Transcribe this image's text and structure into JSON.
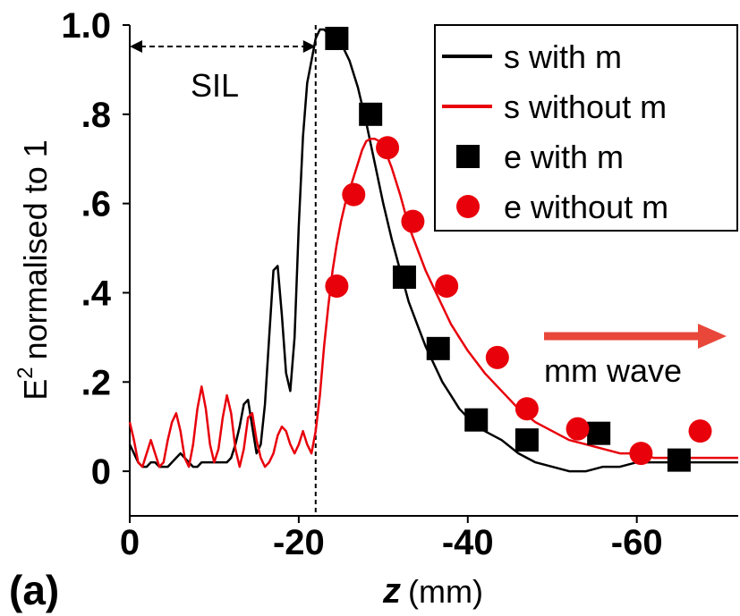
{
  "chart_data": {
    "type": "line",
    "panel_label": "(a)",
    "xlabel_var": "z",
    "xlabel_unit": "(mm)",
    "ylabel_base": "E",
    "ylabel_sup": "2",
    "ylabel_rest": "normalised to 1",
    "xlim": [
      0,
      -72
    ],
    "ylim": [
      -0.1,
      1.0
    ],
    "x_ticks": [
      {
        "value": 0,
        "label": "0"
      },
      {
        "value": -20,
        "label": "-20"
      },
      {
        "value": -40,
        "label": "-40"
      },
      {
        "value": -60,
        "label": "-60"
      }
    ],
    "y_ticks": [
      {
        "value": 0,
        "label": "0"
      },
      {
        "value": 0.2,
        "label": ".2"
      },
      {
        "value": 0.4,
        "label": ".4"
      },
      {
        "value": 0.6,
        "label": ".6"
      },
      {
        "value": 0.8,
        "label": ".8"
      },
      {
        "value": 1.0,
        "label": "1.0"
      }
    ],
    "annotations": {
      "sil_label": "SIL",
      "sil_boundary_z": -22,
      "wave_label": "mm wave",
      "wave_color": "#e8473a"
    },
    "legend_position": "top-right",
    "series": [
      {
        "name": "s with m",
        "kind": "line",
        "color": "#000000",
        "x": [
          0,
          -0.5,
          -1,
          -1.5,
          -2,
          -2.5,
          -3,
          -3.5,
          -4,
          -4.5,
          -5,
          -5.5,
          -6,
          -6.5,
          -7,
          -7.5,
          -8,
          -8.5,
          -9,
          -9.5,
          -10,
          -10.5,
          -11,
          -11.5,
          -12,
          -12.5,
          -13,
          -13.5,
          -14,
          -14.5,
          -15,
          -15.5,
          -16,
          -16.5,
          -17,
          -17.5,
          -18,
          -18.5,
          -19,
          -19.5,
          -20,
          -20.5,
          -21,
          -21.5,
          -22,
          -22.5,
          -23,
          -23.5,
          -24,
          -24.5,
          -25,
          -26,
          -27,
          -28,
          -29,
          -30,
          -31,
          -32,
          -33,
          -34,
          -35,
          -36,
          -37,
          -38,
          -39,
          -40,
          -42,
          -44,
          -46,
          -48,
          -50,
          -52,
          -54,
          -56,
          -58,
          -60,
          -62,
          -64,
          -66,
          -68,
          -70,
          -72
        ],
        "y": [
          0.06,
          0.04,
          0.02,
          0.01,
          0.01,
          0.02,
          0.02,
          0.01,
          0.01,
          0.01,
          0.02,
          0.03,
          0.04,
          0.03,
          0.02,
          0.01,
          0.01,
          0.02,
          0.02,
          0.02,
          0.02,
          0.02,
          0.02,
          0.02,
          0.03,
          0.06,
          0.1,
          0.15,
          0.16,
          0.1,
          0.04,
          0.06,
          0.15,
          0.3,
          0.45,
          0.46,
          0.35,
          0.22,
          0.18,
          0.3,
          0.55,
          0.75,
          0.87,
          0.92,
          0.97,
          0.99,
          0.99,
          0.98,
          0.98,
          0.97,
          0.96,
          0.92,
          0.86,
          0.78,
          0.69,
          0.6,
          0.52,
          0.45,
          0.38,
          0.33,
          0.28,
          0.24,
          0.2,
          0.17,
          0.14,
          0.12,
          0.09,
          0.07,
          0.04,
          0.02,
          0.01,
          0.0,
          0.0,
          0.01,
          0.01,
          0.02,
          0.02,
          0.02,
          0.02,
          0.02,
          0.02,
          0.02
        ]
      },
      {
        "name": "s without m",
        "kind": "line",
        "color": "#e8000b",
        "x": [
          0,
          -0.5,
          -1,
          -1.5,
          -2,
          -2.5,
          -3,
          -3.5,
          -4,
          -4.5,
          -5,
          -5.5,
          -6,
          -6.5,
          -7,
          -7.5,
          -8,
          -8.5,
          -9,
          -9.5,
          -10,
          -10.5,
          -11,
          -11.5,
          -12,
          -12.5,
          -13,
          -13.5,
          -14,
          -14.5,
          -15,
          -15.5,
          -16,
          -16.5,
          -17,
          -17.5,
          -18,
          -18.5,
          -19,
          -19.5,
          -20,
          -20.5,
          -21,
          -21.5,
          -22,
          -22.5,
          -23,
          -23.5,
          -24,
          -24.5,
          -25,
          -25.5,
          -26,
          -26.5,
          -27,
          -27.5,
          -28,
          -28.5,
          -29,
          -29.5,
          -30,
          -31,
          -32,
          -33,
          -34,
          -35,
          -36,
          -37,
          -38,
          -39,
          -40,
          -42,
          -44,
          -46,
          -48,
          -50,
          -52,
          -54,
          -56,
          -58,
          -60,
          -62,
          -64,
          -66,
          -68,
          -70,
          -72
        ],
        "y": [
          0.11,
          0.07,
          0.02,
          0.01,
          0.04,
          0.07,
          0.04,
          0.01,
          0.02,
          0.07,
          0.11,
          0.13,
          0.09,
          0.03,
          0.01,
          0.06,
          0.14,
          0.19,
          0.14,
          0.06,
          0.02,
          0.05,
          0.12,
          0.17,
          0.13,
          0.05,
          0.01,
          0.05,
          0.12,
          0.13,
          0.07,
          0.03,
          0.01,
          0.02,
          0.04,
          0.08,
          0.1,
          0.09,
          0.06,
          0.04,
          0.06,
          0.09,
          0.06,
          0.04,
          0.09,
          0.17,
          0.28,
          0.37,
          0.45,
          0.51,
          0.56,
          0.6,
          0.63,
          0.66,
          0.69,
          0.72,
          0.74,
          0.745,
          0.745,
          0.74,
          0.73,
          0.68,
          0.62,
          0.55,
          0.5,
          0.45,
          0.41,
          0.37,
          0.33,
          0.3,
          0.27,
          0.22,
          0.18,
          0.14,
          0.11,
          0.09,
          0.07,
          0.06,
          0.05,
          0.04,
          0.04,
          0.03,
          0.03,
          0.03,
          0.03,
          0.03,
          0.03
        ]
      },
      {
        "name": "e with m",
        "kind": "square",
        "color": "#000000",
        "x": [
          -24.5,
          -28.5,
          -32.5,
          -36.5,
          -41,
          -47,
          -55.5,
          -65
        ],
        "y": [
          0.97,
          0.8,
          0.435,
          0.275,
          0.115,
          0.07,
          0.085,
          0.025
        ]
      },
      {
        "name": "e without m",
        "kind": "circle",
        "color": "#e8000b",
        "x": [
          -24.5,
          -26.5,
          -30.5,
          -33.5,
          -37.5,
          -43.5,
          -47,
          -53,
          -60.5,
          -67.5
        ],
        "y": [
          0.415,
          0.62,
          0.725,
          0.56,
          0.415,
          0.255,
          0.14,
          0.095,
          0.04,
          0.09
        ]
      }
    ]
  }
}
